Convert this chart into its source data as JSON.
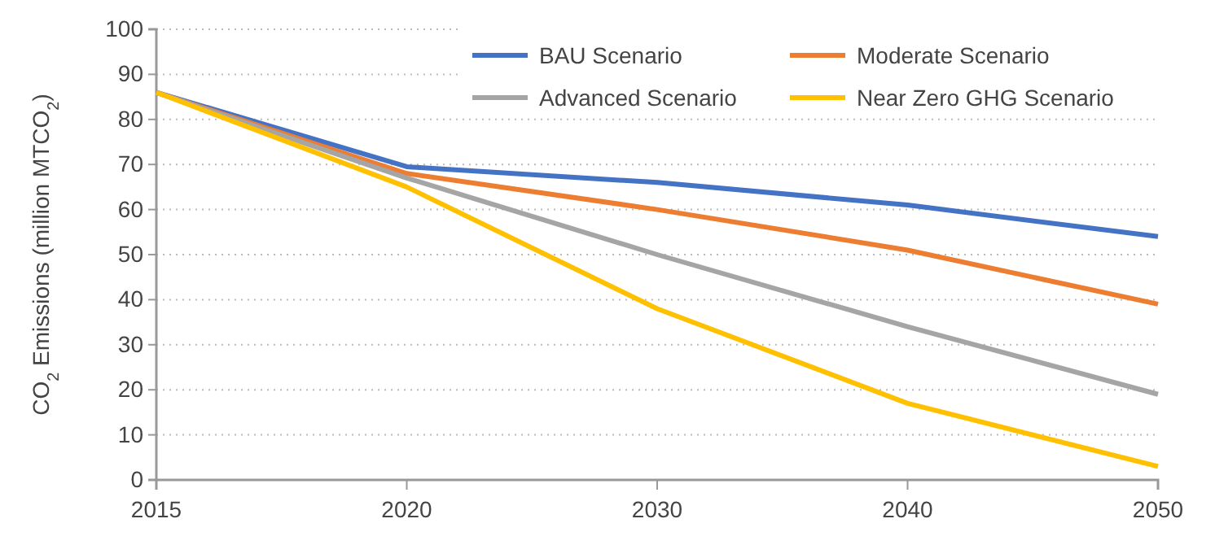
{
  "chart_data": {
    "type": "line",
    "ylabel": "CO$_{2}$ Emissions (million MTCO$_{2}$)",
    "categories": [
      "2015",
      "2020",
      "2030",
      "2040",
      "2050"
    ],
    "series": [
      {
        "name": "BAU Scenario",
        "color": "#4472c4",
        "values": [
          86,
          69.5,
          66,
          61,
          54
        ]
      },
      {
        "name": "Moderate Scenario",
        "color": "#ed7d31",
        "values": [
          86,
          68,
          60,
          51,
          39
        ]
      },
      {
        "name": "Advanced Scenario",
        "color": "#a5a5a5",
        "values": [
          86,
          67,
          50,
          34,
          19
        ]
      },
      {
        "name": "Near Zero GHG Scenario",
        "color": "#ffc000",
        "values": [
          86,
          65,
          38,
          17,
          3
        ]
      }
    ],
    "ylim": [
      0,
      100
    ],
    "yticks": [
      0,
      10,
      20,
      30,
      40,
      50,
      60,
      70,
      80,
      90,
      100
    ],
    "grid": "y",
    "legend": "top right",
    "marker": "none",
    "line_style": "solid"
  }
}
